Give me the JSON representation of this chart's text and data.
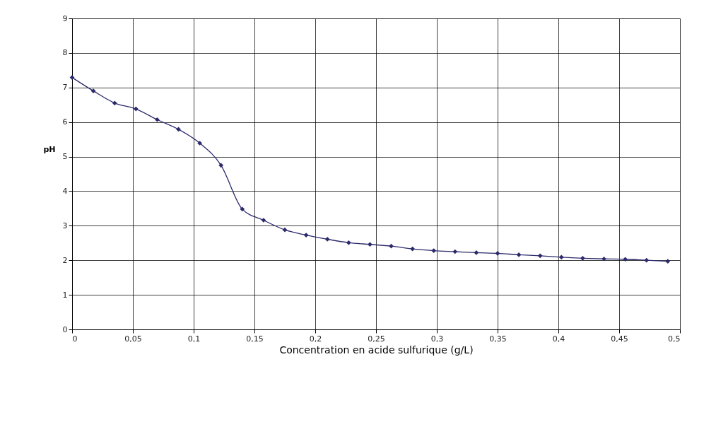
{
  "chart_data": {
    "type": "line",
    "xlabel": "Concentration en acide sulfurique (g/L)",
    "ylabel": "pH",
    "x": [
      0,
      0.0175,
      0.035,
      0.0525,
      0.07,
      0.0875,
      0.105,
      0.1225,
      0.14,
      0.1575,
      0.175,
      0.1925,
      0.21,
      0.2275,
      0.245,
      0.2625,
      0.28,
      0.2975,
      0.315,
      0.3325,
      0.35,
      0.3675,
      0.385,
      0.4025,
      0.42,
      0.4375,
      0.455,
      0.4725,
      0.49
    ],
    "series": [
      {
        "color": "#2b2a6b",
        "values": [
          7.29,
          6.9,
          6.55,
          6.38,
          6.07,
          5.79,
          5.39,
          4.75,
          3.48,
          3.16,
          2.88,
          2.73,
          2.61,
          2.51,
          2.46,
          2.41,
          2.33,
          2.28,
          2.25,
          2.22,
          2.2,
          2.16,
          2.13,
          2.09,
          2.06,
          2.04,
          2.03,
          2.0,
          1.97
        ]
      }
    ],
    "xlim": [
      0,
      0.5
    ],
    "xticks": [
      0,
      {
        "value": 0.05,
        "label": "0,05"
      },
      {
        "value": 0.1,
        "label": "0,1"
      },
      {
        "value": 0.15,
        "label": "0,15"
      },
      {
        "value": 0.2,
        "label": "0,2"
      },
      {
        "value": 0.25,
        "label": "0,25"
      },
      {
        "value": 0.3,
        "label": "0,3"
      },
      {
        "value": 0.35,
        "label": "0,35"
      },
      {
        "value": 0.4,
        "label": "0,4"
      },
      {
        "value": 0.45,
        "label": "0,45"
      },
      {
        "value": 0.5,
        "label": "0,5"
      }
    ],
    "ylim": [
      0,
      9
    ],
    "yticks": [
      0,
      1,
      2,
      3,
      4,
      5,
      6,
      7,
      8,
      9
    ],
    "grid": true,
    "marker": "diamond",
    "line_style": "solid"
  }
}
